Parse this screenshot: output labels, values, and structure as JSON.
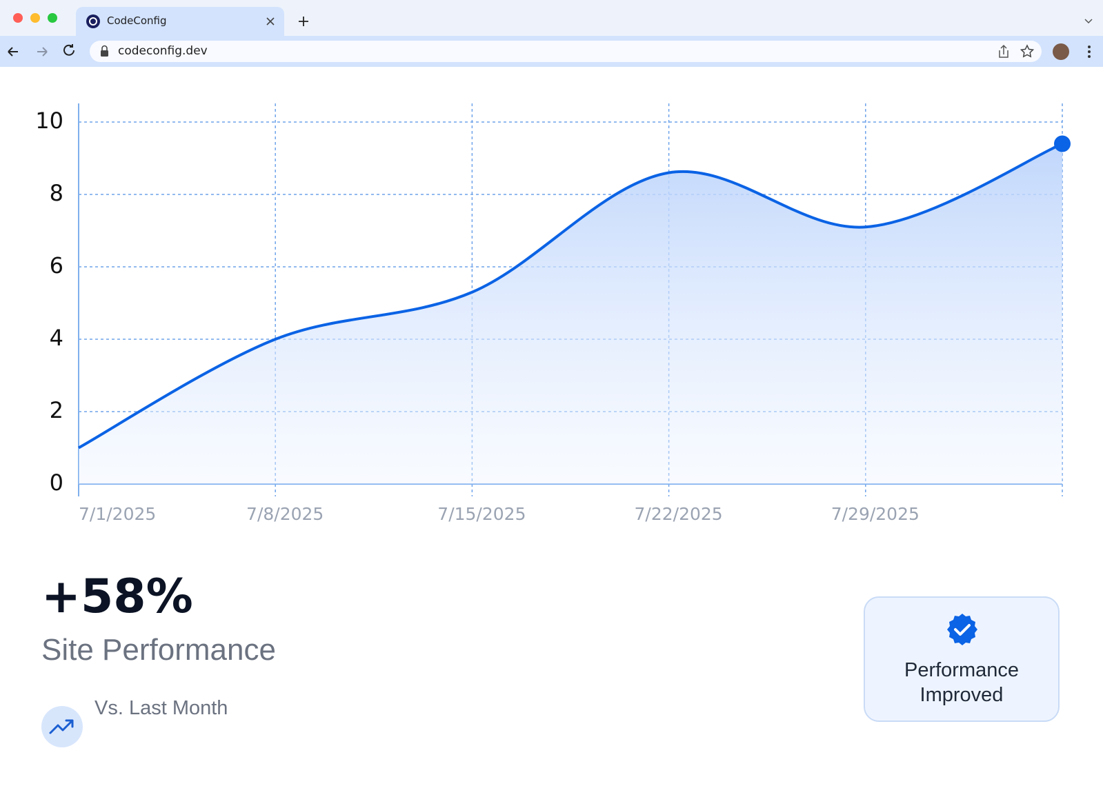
{
  "browser": {
    "tab_title": "CodeConfig",
    "url": "codeconfig.dev"
  },
  "chart_data": {
    "type": "line",
    "categories": [
      "7/1/2025",
      "7/8/2025",
      "7/15/2025",
      "7/22/2025",
      "7/29/2025",
      null
    ],
    "values": [
      1,
      4,
      5.3,
      8.6,
      7.1,
      9.4
    ],
    "color": "#0b63e5",
    "ylim": [
      0,
      10
    ],
    "yticks": [
      0,
      2,
      4,
      6,
      8,
      10
    ],
    "grid": true
  },
  "summary": {
    "stat": "+58%",
    "label": "Site Performance",
    "comparison": "Vs. Last Month"
  },
  "badge": {
    "text": "Performance Improved"
  }
}
